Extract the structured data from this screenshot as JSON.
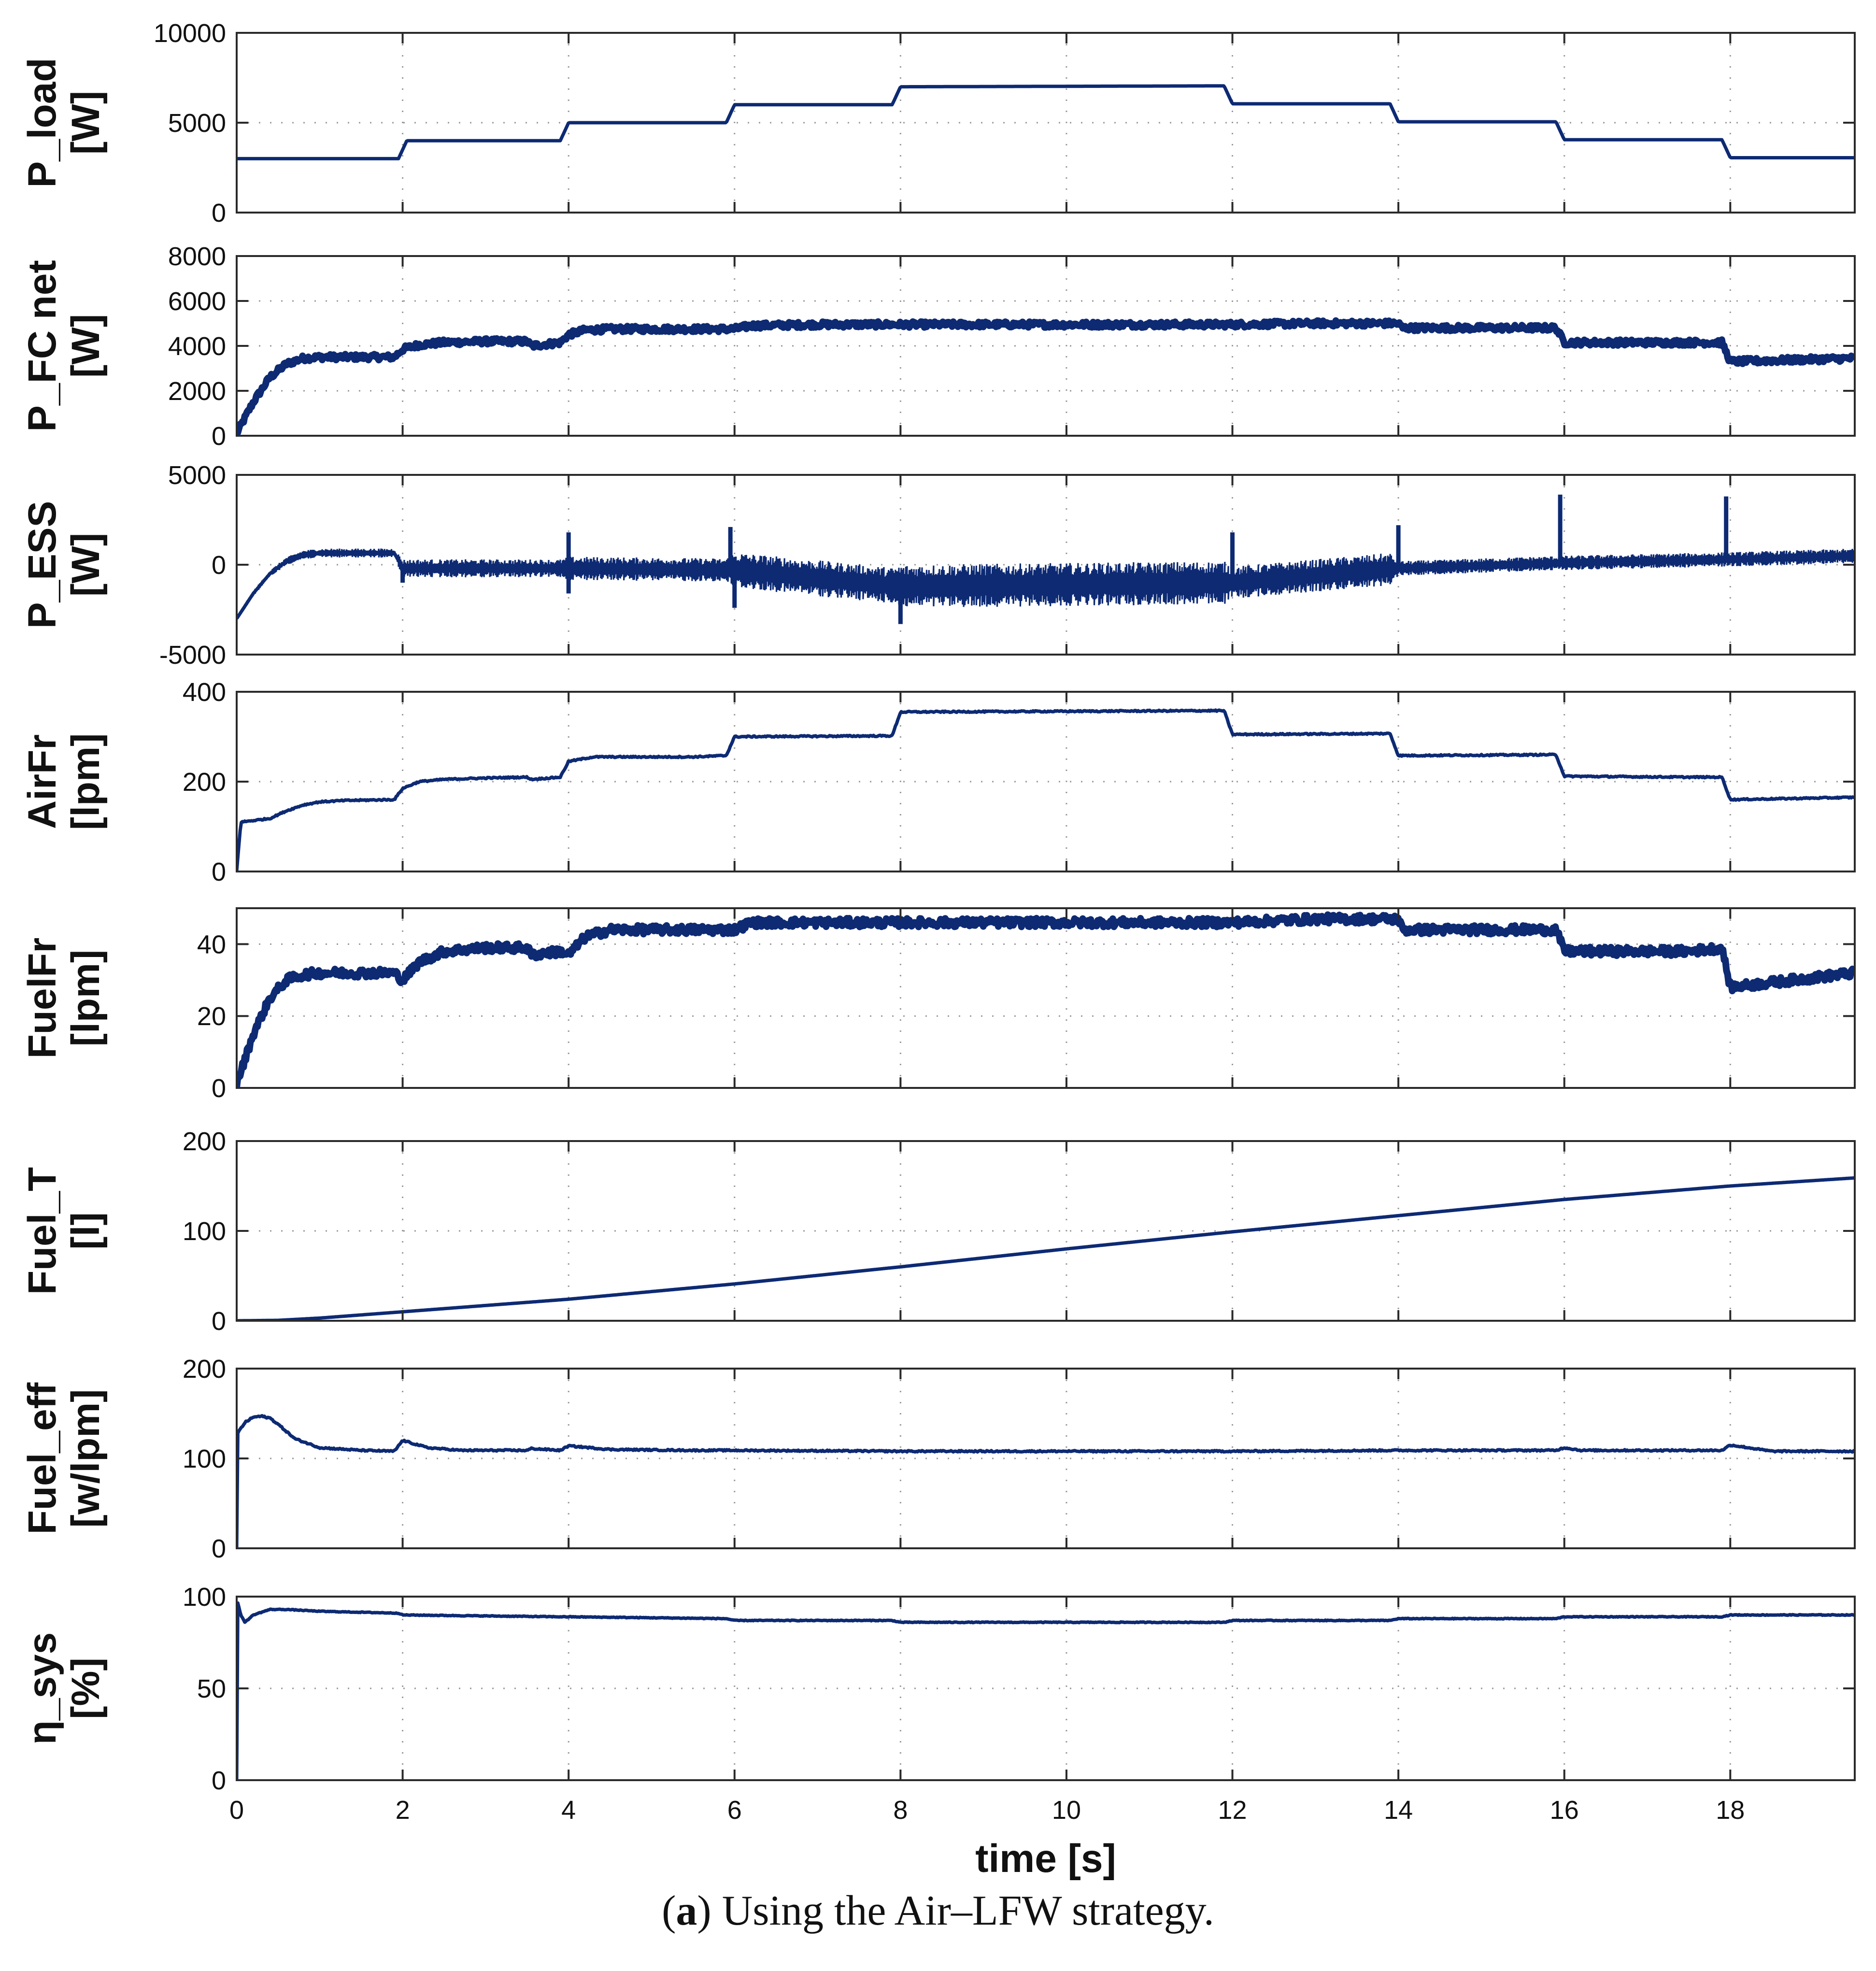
{
  "caption": {
    "prefix": "(",
    "bold": "a",
    "suffix": ") Using the Air–LFW strategy."
  },
  "colors": {
    "line": "#0d2a73",
    "grid": "#9a9a9a",
    "axis": "#2a2a2a",
    "text": "#111111"
  },
  "chart_data": [
    {
      "type": "line",
      "ylabel": [
        "P_load",
        "[W]"
      ],
      "ylim": [
        0,
        10000
      ],
      "yticks": [
        0,
        5000,
        10000
      ],
      "xlim": [
        0,
        19.5
      ],
      "series": [
        {
          "name": "P_load",
          "noise": 0,
          "x": [
            0,
            1.95,
            2.05,
            3.9,
            4.0,
            5.9,
            6.0,
            7.9,
            8.0,
            11.9,
            12.0,
            13.9,
            14.0,
            15.9,
            16.0,
            17.9,
            18.0,
            19.5
          ],
          "y": [
            3000,
            3000,
            4000,
            4000,
            5000,
            5000,
            6000,
            6000,
            7000,
            7050,
            6050,
            6050,
            5050,
            5050,
            4050,
            4050,
            3050,
            3050
          ]
        }
      ]
    },
    {
      "type": "line",
      "ylabel": [
        "P_FC net",
        "[W]"
      ],
      "ylim": [
        0,
        8000
      ],
      "yticks": [
        0,
        2000,
        4000,
        6000,
        8000
      ],
      "xlim": [
        0,
        19.5
      ],
      "series": [
        {
          "name": "P_FC net",
          "noise": 130,
          "x": [
            0,
            0.2,
            0.4,
            0.6,
            0.8,
            1.0,
            1.9,
            2.0,
            2.2,
            2.5,
            3.0,
            3.5,
            3.55,
            3.9,
            4.0,
            4.2,
            4.5,
            5.0,
            5.5,
            6.0,
            6.2,
            7.0,
            8.0,
            10.0,
            12.0,
            13.0,
            14.0,
            14.05,
            15.9,
            16.0,
            17.5,
            17.9,
            18.0,
            19.5
          ],
          "y": [
            100,
            1500,
            2600,
            3200,
            3450,
            3500,
            3500,
            3850,
            4050,
            4150,
            4200,
            4200,
            4000,
            4150,
            4500,
            4700,
            4750,
            4750,
            4750,
            4750,
            4900,
            4950,
            4950,
            4950,
            4950,
            5000,
            5000,
            4800,
            4800,
            4150,
            4150,
            4150,
            3300,
            3450
          ]
        }
      ]
    },
    {
      "type": "line",
      "ylabel": [
        "P_ESS",
        "[W]"
      ],
      "ylim": [
        -5000,
        5000
      ],
      "yticks": [
        -5000,
        0,
        5000
      ],
      "xlim": [
        0,
        19.5
      ],
      "series": [
        {
          "name": "P_ESS",
          "noise": 0,
          "x": [
            0,
            0.2,
            0.4,
            0.6,
            0.8,
            1.0,
            1.9,
            2.0,
            4.0,
            6.0,
            8.0,
            12.0,
            14.0,
            16.0,
            18.0,
            19.5
          ],
          "y": [
            -3000,
            -1600,
            -500,
            200,
            550,
            650,
            650,
            -200,
            -200,
            -300,
            -1200,
            -1000,
            -200,
            100,
            300,
            500
          ]
        }
      ],
      "envelope": {
        "x": [
          0,
          0.8,
          1.9,
          2.0,
          3.9,
          4.0,
          5.9,
          6.0,
          7.9,
          8.0,
          11.9,
          12.0,
          13.9,
          14.0,
          19.5
        ],
        "halfwidth": [
          100,
          250,
          250,
          500,
          500,
          650,
          650,
          1000,
          1000,
          1200,
          1200,
          900,
          900,
          400,
          400
        ]
      },
      "spikes": [
        {
          "x": 2.0,
          "y": -1000
        },
        {
          "x": 4.0,
          "y": 1800
        },
        {
          "x": 4.0,
          "y": -1600
        },
        {
          "x": 5.95,
          "y": 2100
        },
        {
          "x": 6.0,
          "y": -2400
        },
        {
          "x": 8.0,
          "y": -3300
        },
        {
          "x": 12.0,
          "y": 1800
        },
        {
          "x": 14.0,
          "y": 2200
        },
        {
          "x": 15.95,
          "y": 3900
        },
        {
          "x": 17.95,
          "y": 3800
        }
      ]
    },
    {
      "type": "line",
      "ylabel": [
        "AirFr",
        "[lpm]"
      ],
      "ylim": [
        0,
        400
      ],
      "yticks": [
        0,
        200,
        400
      ],
      "xlim": [
        0,
        19.5
      ],
      "series": [
        {
          "name": "AirFr",
          "noise": 1.5,
          "x": [
            0,
            0.05,
            0.4,
            0.6,
            0.8,
            1.0,
            1.3,
            1.9,
            2.0,
            2.2,
            2.5,
            3.0,
            3.5,
            3.55,
            3.9,
            4.0,
            4.3,
            5.0,
            5.5,
            5.9,
            6.0,
            7.9,
            8.0,
            11.9,
            12.0,
            13.9,
            14.0,
            15.9,
            16.0,
            17.5,
            17.9,
            18.0,
            19.5
          ],
          "y": [
            0,
            110,
            118,
            135,
            148,
            155,
            158,
            160,
            185,
            200,
            205,
            208,
            210,
            205,
            210,
            245,
            255,
            255,
            255,
            258,
            300,
            302,
            355,
            358,
            305,
            307,
            258,
            260,
            212,
            210,
            210,
            160,
            165
          ]
        }
      ]
    },
    {
      "type": "line",
      "ylabel": [
        "FuelFr",
        "[lpm]"
      ],
      "ylim": [
        0,
        50
      ],
      "yticks": [
        0,
        20,
        40
      ],
      "xlim": [
        0,
        19.5
      ],
      "series": [
        {
          "name": "FuelFr",
          "noise": 1.2,
          "x": [
            0,
            0.2,
            0.4,
            0.6,
            0.8,
            1.0,
            1.9,
            2.0,
            2.2,
            2.5,
            3.0,
            3.5,
            3.55,
            3.9,
            4.0,
            4.2,
            4.5,
            5.0,
            5.5,
            6.0,
            6.2,
            7.0,
            8.0,
            10.0,
            12.0,
            13.0,
            14.0,
            14.05,
            15.9,
            16.0,
            17.5,
            17.9,
            18.0,
            19.5
          ],
          "y": [
            1,
            15,
            25,
            30,
            31.5,
            32,
            32,
            30,
            35,
            38,
            39,
            39,
            37,
            38,
            37,
            42,
            44,
            44,
            44,
            44,
            46,
            46,
            46,
            46,
            46,
            47,
            47,
            44,
            44,
            38,
            38,
            39,
            28,
            32
          ]
        }
      ]
    },
    {
      "type": "line",
      "ylabel": [
        "Fuel_T",
        "[l]"
      ],
      "ylim": [
        0,
        200
      ],
      "yticks": [
        0,
        100,
        200
      ],
      "xlim": [
        0,
        19.5
      ],
      "series": [
        {
          "name": "Fuel_T",
          "noise": 0,
          "x": [
            0,
            0.5,
            1,
            2,
            4,
            6,
            8,
            10,
            12,
            14,
            16,
            18,
            19.5
          ],
          "y": [
            0,
            0.5,
            3,
            10,
            24,
            41,
            60,
            80,
            99,
            117,
            135,
            150,
            159
          ]
        }
      ]
    },
    {
      "type": "line",
      "ylabel": [
        "Fuel_eff",
        "[w/lpm]"
      ],
      "ylim": [
        0,
        200
      ],
      "yticks": [
        0,
        100,
        200
      ],
      "xlim": [
        0,
        19.5
      ],
      "series": [
        {
          "name": "Fuel_eff",
          "noise": 0.8,
          "x": [
            0,
            0.01,
            0.1,
            0.2,
            0.3,
            0.4,
            0.5,
            0.7,
            1.0,
            1.5,
            1.9,
            2.0,
            2.3,
            2.7,
            3.5,
            3.55,
            3.9,
            4.0,
            4.5,
            5.5,
            6.0,
            8.0,
            12.0,
            14.0,
            15.9,
            16.0,
            16.2,
            17.5,
            17.9,
            18.0,
            18.5,
            19.5
          ],
          "y": [
            0,
            128,
            140,
            146,
            147,
            145,
            138,
            122,
            112,
            109,
            108,
            120,
            112,
            109,
            109,
            111,
            109,
            114,
            110,
            109,
            109,
            108,
            108,
            109,
            109,
            112,
            109,
            109,
            109,
            115,
            108,
            108
          ]
        }
      ]
    },
    {
      "type": "line",
      "ylabel": [
        "η_sys",
        "[%]"
      ],
      "ylim": [
        0,
        100
      ],
      "yticks": [
        0,
        50,
        100
      ],
      "xlim": [
        0,
        19.5
      ],
      "series": [
        {
          "name": "η_sys",
          "noise": 0.2,
          "x": [
            0,
            0.01,
            0.05,
            0.1,
            0.2,
            0.4,
            0.6,
            1.0,
            1.95,
            2.0,
            3.9,
            4.0,
            5.9,
            6.0,
            7.9,
            8.0,
            11.9,
            12.0,
            13.9,
            14.0,
            15.9,
            16.0,
            17.9,
            18.0,
            19.5
          ],
          "y": [
            0,
            97,
            90,
            86,
            90,
            93,
            93,
            92,
            91,
            90,
            89,
            89,
            88,
            87,
            87,
            86,
            86,
            87,
            87,
            88,
            88,
            89,
            89,
            90,
            90
          ]
        }
      ]
    }
  ],
  "x_axis": {
    "label": "time [s]",
    "ticks": [
      0,
      2,
      4,
      6,
      8,
      10,
      12,
      14,
      16,
      18
    ]
  }
}
